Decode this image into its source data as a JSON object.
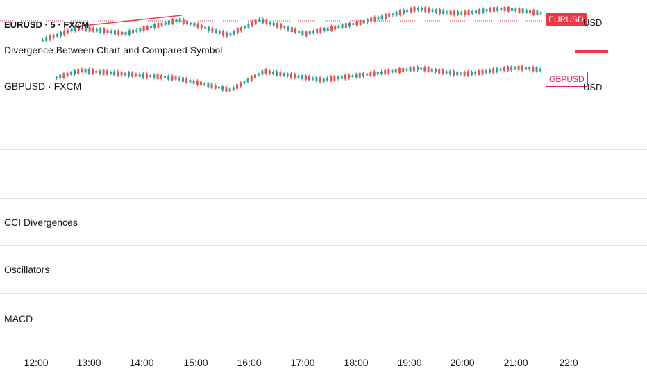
{
  "main_pane": {
    "symbol_legend": "EURUSD · 5 · FXCM",
    "indicator_title": "Divergence Between Chart and Compared Symbol",
    "compare_legend": "GBPUSD · FXCM",
    "eur_tag": "EURUSD",
    "gbp_tag": "GBPUSD",
    "currency_1": "USD",
    "currency_2": "USD"
  },
  "panes": [
    {
      "title": ""
    },
    {
      "title": "CCI Divergences"
    },
    {
      "title": "Oscillators"
    },
    {
      "title": "MACD"
    }
  ],
  "time_axis": [
    "12:00",
    "13:00",
    "14:00",
    "15:00",
    "16:00",
    "17:00",
    "18:00",
    "19:00",
    "20:00",
    "21:00",
    "22:0"
  ],
  "colors": {
    "up": "#26a69a",
    "down": "#ef5350",
    "accent": "#f23645",
    "gbp": "#e91e63",
    "grid": "#e0e3eb"
  }
}
